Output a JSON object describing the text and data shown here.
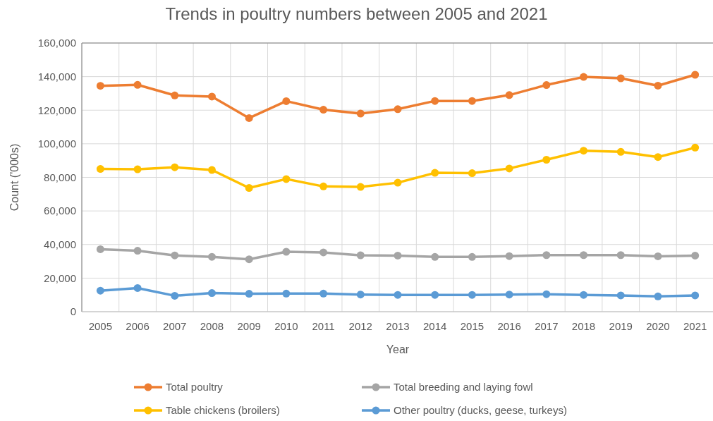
{
  "chart_data": {
    "type": "line",
    "title": "Trends in poultry numbers between 2005 and 2021",
    "xlabel": "Year",
    "ylabel": "Count ('000s)",
    "categories": [
      "2005",
      "2006",
      "2007",
      "2008",
      "2009",
      "2010",
      "2011",
      "2012",
      "2013",
      "2014",
      "2015",
      "2016",
      "2017",
      "2018",
      "2019",
      "2020",
      "2021"
    ],
    "series": [
      {
        "name": "Total poultry",
        "color": "#ed7d31",
        "values": [
          134500,
          135100,
          128800,
          128100,
          115300,
          125400,
          120300,
          118000,
          120600,
          125500,
          125500,
          129000,
          135000,
          139800,
          139000,
          134600,
          141100
        ]
      },
      {
        "name": "Total breeding and laying fowl",
        "color": "#a5a5a5",
        "values": [
          37200,
          36300,
          33500,
          32700,
          31200,
          35700,
          35300,
          33600,
          33400,
          32600,
          32600,
          33100,
          33700,
          33700,
          33700,
          33000,
          33400
        ]
      },
      {
        "name": "Table chickens (broilers)",
        "color": "#ffc000",
        "values": [
          85000,
          84800,
          86000,
          84400,
          73700,
          79000,
          74600,
          74300,
          76800,
          82700,
          82500,
          85300,
          90500,
          95900,
          95200,
          92100,
          97700
        ]
      },
      {
        "name": "Other poultry (ducks, geese, turkeys)",
        "color": "#5b9bd5",
        "values": [
          12500,
          14100,
          9500,
          11100,
          10700,
          10800,
          10800,
          10200,
          10000,
          10000,
          10000,
          10200,
          10400,
          10000,
          9700,
          9100,
          9700
        ]
      }
    ],
    "ylim": [
      0,
      160000
    ],
    "yticks": [
      {
        "value": 0,
        "label": "0"
      },
      {
        "value": 20000,
        "label": "20,000"
      },
      {
        "value": 40000,
        "label": "40,000"
      },
      {
        "value": 60000,
        "label": "60,000"
      },
      {
        "value": 80000,
        "label": "80,000"
      },
      {
        "value": 100000,
        "label": "100,000"
      },
      {
        "value": 120000,
        "label": "120,000"
      },
      {
        "value": 140000,
        "label": "140,000"
      },
      {
        "value": 160000,
        "label": "160,000"
      }
    ],
    "grid": true,
    "legend": "bottom",
    "marker": "circle",
    "line_style": "solid"
  }
}
